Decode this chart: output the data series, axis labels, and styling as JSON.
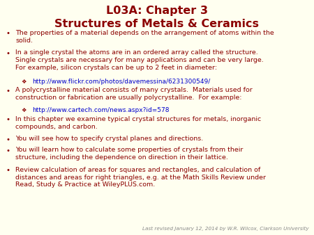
{
  "background_color": "#FFFFF0",
  "title_line1": "L03A: Chapter 3",
  "title_line2": "Structures of Metals & Ceramics",
  "title_color": "#8B0000",
  "title_fontsize": 11.5,
  "body_color": "#8B0000",
  "body_fontsize": 6.8,
  "link_color": "#0000CC",
  "link_fontsize": 6.5,
  "footer_color": "#888888",
  "footer_fontsize": 5.2,
  "footer_text": "Last revised January 12, 2014 by W.R. Wilcox, Clarkson University",
  "bullet_items": [
    {
      "type": "bullet",
      "text": "The properties of a material depends on the arrangement of atoms within the\nsolid.",
      "nlines": 2
    },
    {
      "type": "bullet",
      "text": "In a single crystal the atoms are in an ordered array called the structure.\nSingle crystals are necessary for many applications and can be very large.\nFor example, silicon crystals can be up to 2 feet in diameter:",
      "nlines": 3
    },
    {
      "type": "link",
      "text": "http://www.flickr.com/photos/davemessina/6231300549/",
      "nlines": 1
    },
    {
      "type": "bullet",
      "text": "A polycrystalline material consists of many crystals.  Materials used for\nconstruction or fabrication are usually polycrystalline.  For example:",
      "nlines": 2
    },
    {
      "type": "link",
      "text": "http://www.cartech.com/news.aspx?id=578",
      "nlines": 1
    },
    {
      "type": "bullet",
      "text": "In this chapter we examine typical crystal structures for metals, inorganic\ncompounds, and carbon.",
      "nlines": 2
    },
    {
      "type": "bullet",
      "text": "You will see how to specify crystal planes and directions.",
      "nlines": 1
    },
    {
      "type": "bullet",
      "text": "You will learn how to calculate some properties of crystals from their\nstructure, including the dependence on direction in their lattice.",
      "nlines": 2
    },
    {
      "type": "bullet",
      "text": "Review calculation of areas for squares and rectangles, and calculation of\ndistances and areas for right triangles, e.g. at the Math Skills Review under\nRead, Study & Practice at WileyPLUS.com.",
      "nlines": 3
    }
  ]
}
